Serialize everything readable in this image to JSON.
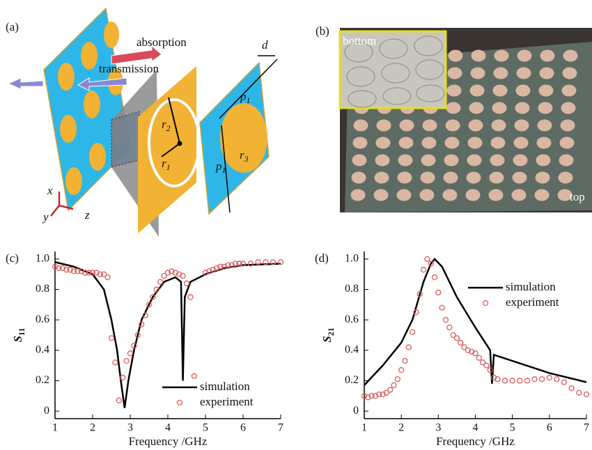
{
  "diagram": {
    "panel_label": "(a)",
    "arrows": [
      "absorption",
      "transmission"
    ],
    "symbols": [
      {
        "symbol": "r",
        "subscript": "2"
      },
      {
        "symbol": "r",
        "subscript": "1"
      },
      {
        "symbol": "r",
        "subscript": "3"
      },
      {
        "symbol": "p",
        "subscript": "1"
      },
      {
        "symbol": "p",
        "subscript": "1"
      }
    ],
    "dimension": "d",
    "axes": [
      "x",
      "y",
      "z"
    ]
  },
  "photo": {
    "panel_label": "(b)",
    "inset_label": "bottom",
    "label": "top"
  },
  "chart_data": [
    {
      "type": "line",
      "panel_label": "(c)",
      "xlabel": "Frequency /GHz",
      "ylabel": {
        "symbol": "S",
        "subscript": "11"
      },
      "xlim": [
        1,
        7
      ],
      "xticks": [
        1,
        2,
        3,
        4,
        5,
        6,
        7
      ],
      "ylim": [
        -0.05,
        1.05
      ],
      "yticks": [
        0,
        0.2,
        0.4,
        0.6,
        0.8,
        {
          "value": 1,
          "label": "1.0"
        }
      ],
      "legend": "lower right",
      "series": [
        {
          "name": "simulation",
          "color": "#000000",
          "marker": "line",
          "x": [
            1,
            1.5,
            2,
            2.3,
            2.5,
            2.65,
            2.75,
            2.85,
            2.95,
            3.1,
            3.3,
            3.6,
            3.9,
            4.2,
            4.35,
            4.4,
            4.45,
            4.6,
            5,
            5.5,
            6,
            7
          ],
          "values": [
            0.98,
            0.95,
            0.9,
            0.8,
            0.6,
            0.4,
            0.2,
            0.02,
            0.2,
            0.4,
            0.6,
            0.75,
            0.85,
            0.88,
            0.85,
            0.2,
            0.75,
            0.85,
            0.9,
            0.94,
            0.96,
            0.97
          ]
        },
        {
          "name": "experiment",
          "color": "#e05a5a",
          "marker": "circle",
          "x": [
            1,
            1.1,
            1.2,
            1.3,
            1.4,
            1.5,
            1.6,
            1.7,
            1.8,
            1.9,
            2,
            2.1,
            2.2,
            2.3,
            2.4,
            2.5,
            2.6,
            2.7,
            2.8,
            2.9,
            3,
            3.1,
            3.2,
            3.3,
            3.4,
            3.5,
            3.6,
            3.7,
            3.8,
            3.9,
            4,
            4.1,
            4.2,
            4.3,
            4.4,
            4.5,
            4.6,
            4.7,
            5,
            5.1,
            5.2,
            5.3,
            5.4,
            5.5,
            5.6,
            5.7,
            5.8,
            5.9,
            6,
            6.2,
            6.4,
            6.6,
            6.8,
            7
          ],
          "values": [
            0.95,
            0.94,
            0.94,
            0.93,
            0.93,
            0.92,
            0.92,
            0.92,
            0.91,
            0.91,
            0.91,
            0.91,
            0.9,
            0.9,
            0.88,
            0.48,
            0.32,
            0.07,
            0.22,
            0.33,
            0.38,
            0.43,
            0.5,
            0.57,
            0.63,
            0.7,
            0.75,
            0.8,
            0.85,
            0.89,
            0.91,
            0.92,
            0.91,
            0.9,
            0.89,
            0.84,
            0.75,
            0.23,
            0.91,
            0.92,
            0.93,
            0.94,
            0.95,
            0.95,
            0.96,
            0.96,
            0.97,
            0.97,
            0.97,
            0.97,
            0.98,
            0.98,
            0.98,
            0.98
          ]
        }
      ]
    },
    {
      "type": "line",
      "panel_label": "(d)",
      "xlabel": "Frequency /GHz",
      "ylabel": {
        "symbol": "S",
        "subscript": "21"
      },
      "xlim": [
        1,
        7
      ],
      "xticks": [
        1,
        2,
        3,
        4,
        5,
        6,
        7
      ],
      "ylim": [
        -0.05,
        1.05
      ],
      "yticks": [
        0,
        0.2,
        0.4,
        0.6,
        0.8,
        {
          "value": 1,
          "label": "1.0"
        }
      ],
      "legend": "upper right",
      "series": [
        {
          "name": "simulation",
          "color": "#000000",
          "marker": "line",
          "x": [
            1,
            1.5,
            2,
            2.3,
            2.6,
            2.8,
            2.9,
            3.1,
            3.5,
            4,
            4.4,
            4.45,
            4.5,
            5,
            6,
            7
          ],
          "values": [
            0.17,
            0.3,
            0.45,
            0.6,
            0.85,
            0.97,
            1.0,
            0.95,
            0.75,
            0.55,
            0.4,
            0.18,
            0.37,
            0.33,
            0.25,
            0.19
          ]
        },
        {
          "name": "experiment",
          "color": "#e05a5a",
          "marker": "circle",
          "x": [
            1,
            1.1,
            1.2,
            1.3,
            1.4,
            1.5,
            1.6,
            1.7,
            1.8,
            1.9,
            2,
            2.1,
            2.2,
            2.3,
            2.4,
            2.5,
            2.6,
            2.7,
            2.8,
            2.9,
            3,
            3.1,
            3.2,
            3.3,
            3.4,
            3.5,
            3.6,
            3.7,
            3.8,
            3.9,
            4,
            4.1,
            4.2,
            4.3,
            4.4,
            4.5,
            4.6,
            4.8,
            5,
            5.2,
            5.4,
            5.6,
            5.8,
            6,
            6.2,
            6.4,
            6.6,
            6.8,
            7
          ],
          "values": [
            0.1,
            0.09,
            0.1,
            0.1,
            0.11,
            0.11,
            0.12,
            0.14,
            0.17,
            0.21,
            0.27,
            0.33,
            0.42,
            0.52,
            0.65,
            0.77,
            0.93,
            1.0,
            0.97,
            0.88,
            0.78,
            0.68,
            0.6,
            0.55,
            0.5,
            0.48,
            0.45,
            0.42,
            0.4,
            0.39,
            0.38,
            0.35,
            0.32,
            0.3,
            0.27,
            0.22,
            0.21,
            0.2,
            0.2,
            0.2,
            0.2,
            0.21,
            0.21,
            0.22,
            0.21,
            0.19,
            0.15,
            0.12,
            0.11
          ]
        }
      ]
    }
  ]
}
